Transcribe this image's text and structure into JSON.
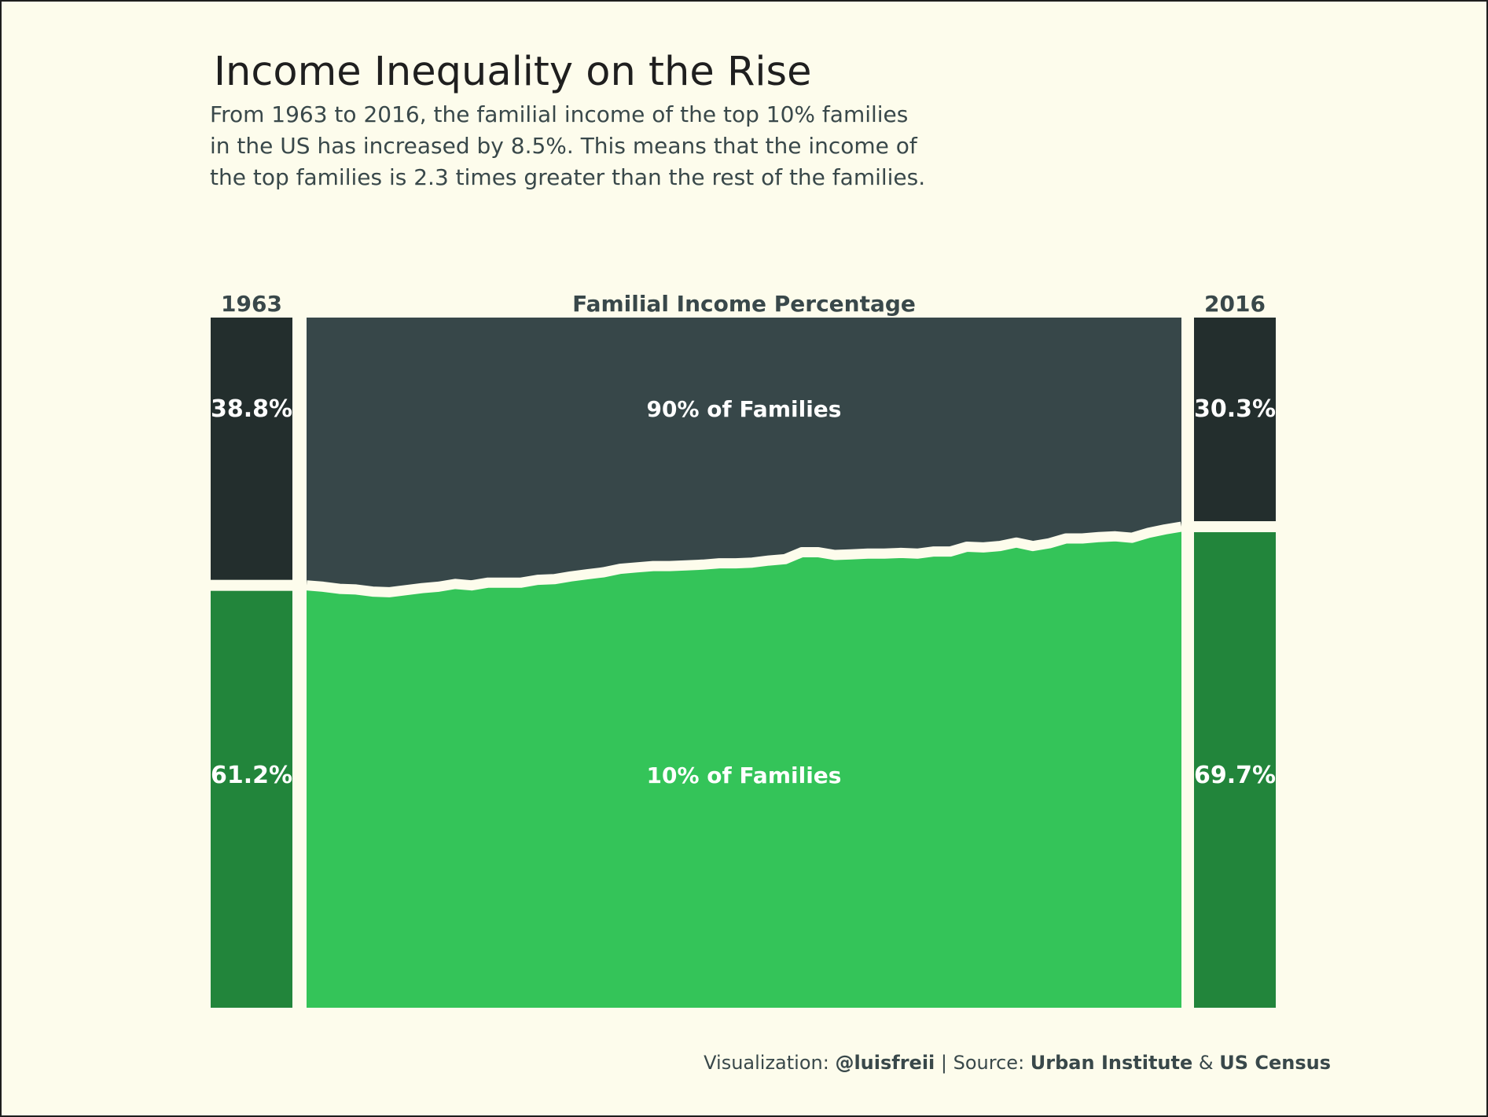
{
  "title": "Income Inequality on the Rise",
  "subtitle_lines": [
    "From 1963 to 2016, the familial income of the top 10% families",
    "in the US has increased by 8.5%. This means that the income of",
    "the top families is 2.3 times greater than the rest of the families."
  ],
  "footer": {
    "viz_prefix": "Visualization: ",
    "viz_handle": "@luisfreii",
    "separator": " | ",
    "source_prefix": "Source: ",
    "source_1": "Urban Institute",
    "amp": " & ",
    "source_2": "US Census"
  },
  "colors": {
    "background": "#fdfcec",
    "top90_area": "#374749",
    "top90_bar": "#232e2d",
    "bottom10_area": "#34c459",
    "bottom10_bar": "#22853b",
    "divider": "#fdfcec"
  },
  "chart_data": {
    "type": "area",
    "title": "Familial Income Percentage",
    "x": [
      1963,
      1964,
      1965,
      1966,
      1967,
      1968,
      1969,
      1970,
      1971,
      1972,
      1973,
      1974,
      1975,
      1976,
      1977,
      1978,
      1979,
      1980,
      1981,
      1982,
      1983,
      1984,
      1985,
      1986,
      1987,
      1988,
      1989,
      1990,
      1991,
      1992,
      1993,
      1994,
      1995,
      1996,
      1997,
      1998,
      1999,
      2000,
      2001,
      2002,
      2003,
      2004,
      2005,
      2006,
      2007,
      2008,
      2009,
      2010,
      2011,
      2012,
      2013,
      2014,
      2015,
      2016
    ],
    "series": [
      {
        "name": "10% of Families",
        "values": [
          61.2,
          61.0,
          60.7,
          60.6,
          60.3,
          60.2,
          60.5,
          60.8,
          61.0,
          61.4,
          61.2,
          61.6,
          61.6,
          61.6,
          62.0,
          62.1,
          62.5,
          62.8,
          63.1,
          63.6,
          63.8,
          64.0,
          64.0,
          64.1,
          64.2,
          64.4,
          64.4,
          64.5,
          64.8,
          65.0,
          66.0,
          66.0,
          65.6,
          65.7,
          65.8,
          65.8,
          65.9,
          65.8,
          66.1,
          66.1,
          66.8,
          66.7,
          66.9,
          67.4,
          66.9,
          67.3,
          68.0,
          68.0,
          68.2,
          68.3,
          68.1,
          68.8,
          69.3,
          69.7
        ]
      },
      {
        "name": "90% of Families",
        "values": [
          38.8,
          39.0,
          39.3,
          39.4,
          39.7,
          39.8,
          39.5,
          39.2,
          39.0,
          38.6,
          38.8,
          38.4,
          38.4,
          38.4,
          38.0,
          37.9,
          37.5,
          37.2,
          36.9,
          36.4,
          36.2,
          36.0,
          36.0,
          35.9,
          35.8,
          35.6,
          35.6,
          35.5,
          35.2,
          35.0,
          34.0,
          34.0,
          34.4,
          34.3,
          34.2,
          34.2,
          34.1,
          34.2,
          33.9,
          33.9,
          33.2,
          33.3,
          33.1,
          32.6,
          33.1,
          32.7,
          32.0,
          32.0,
          31.8,
          31.7,
          31.9,
          31.2,
          30.7,
          30.3
        ]
      }
    ],
    "start_label": "1963",
    "end_label": "2016",
    "start_values": {
      "top": "38.8%",
      "bottom": "61.2%"
    },
    "end_values": {
      "top": "30.3%",
      "bottom": "69.7%"
    },
    "area_labels": {
      "top": "90% of Families",
      "bottom": "10% of Families"
    },
    "ylim": [
      0,
      100
    ]
  }
}
